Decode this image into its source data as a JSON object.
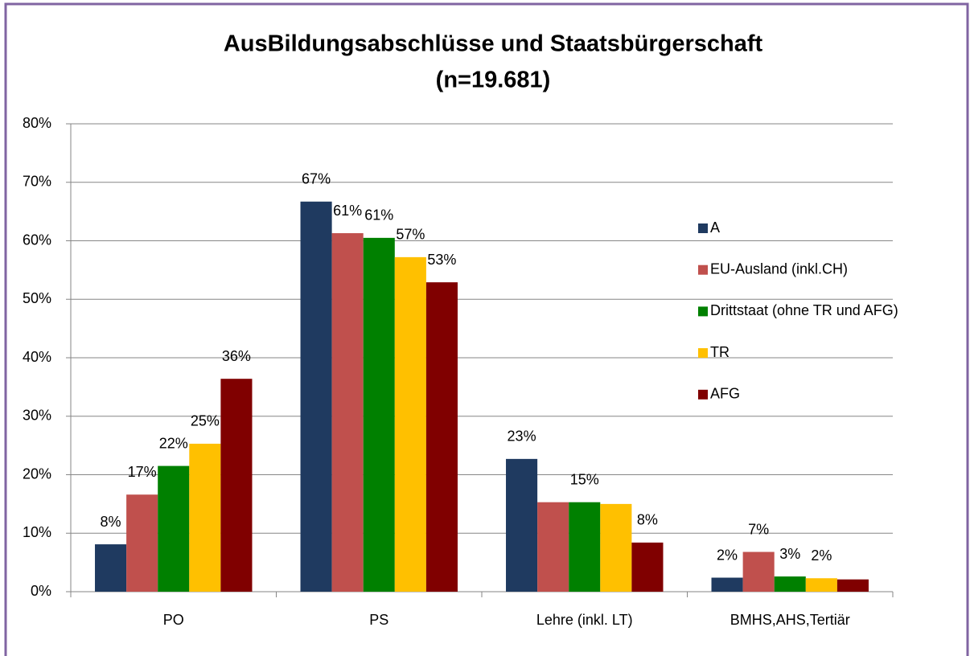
{
  "chart_data": {
    "type": "bar",
    "title": [
      "AusBildungsabschlüsse und Staatsbürgerschaft",
      "(n=19.681)"
    ],
    "categories": [
      "PO",
      "PS",
      "Lehre (inkl. LT)",
      "BMHS,AHS,Tertiär"
    ],
    "series": [
      {
        "name": "A",
        "color": "#1f3a60",
        "values": [
          8.1,
          66.7,
          22.7,
          2.4
        ],
        "value_labels": [
          "8%",
          "67%",
          "23%",
          "2%"
        ]
      },
      {
        "name": "EU-Ausland (inkl.CH)",
        "color": "#c0504d",
        "values": [
          16.6,
          61.3,
          15.3,
          6.8
        ],
        "value_labels": [
          "17%",
          "61%",
          null,
          "7%"
        ]
      },
      {
        "name": "Drittstaat (ohne TR und AFG)",
        "color": "#008000",
        "values": [
          21.5,
          60.5,
          15.3,
          2.6
        ],
        "value_labels": [
          "22%",
          "61%",
          "15%",
          "3%"
        ]
      },
      {
        "name": "TR",
        "color": "#ffc000",
        "values": [
          25.3,
          57.2,
          15.0,
          2.3
        ],
        "value_labels": [
          "25%",
          "57%",
          null,
          "2%"
        ]
      },
      {
        "name": "AFG",
        "color": "#800000",
        "values": [
          36.4,
          52.9,
          8.4,
          2.1
        ],
        "value_labels": [
          "36%",
          "53%",
          "8%",
          null
        ]
      }
    ],
    "ylim": [
      0,
      80
    ],
    "yticks": [
      {
        "value": 0,
        "label": "0%"
      },
      {
        "value": 10,
        "label": "10%"
      },
      {
        "value": 20,
        "label": "20%"
      },
      {
        "value": 30,
        "label": "30%"
      },
      {
        "value": 40,
        "label": "40%"
      },
      {
        "value": 50,
        "label": "50%"
      },
      {
        "value": 60,
        "label": "60%"
      },
      {
        "value": 70,
        "label": "70%"
      },
      {
        "value": 80,
        "label": "80%"
      }
    ],
    "grid": true,
    "legend": "right"
  }
}
